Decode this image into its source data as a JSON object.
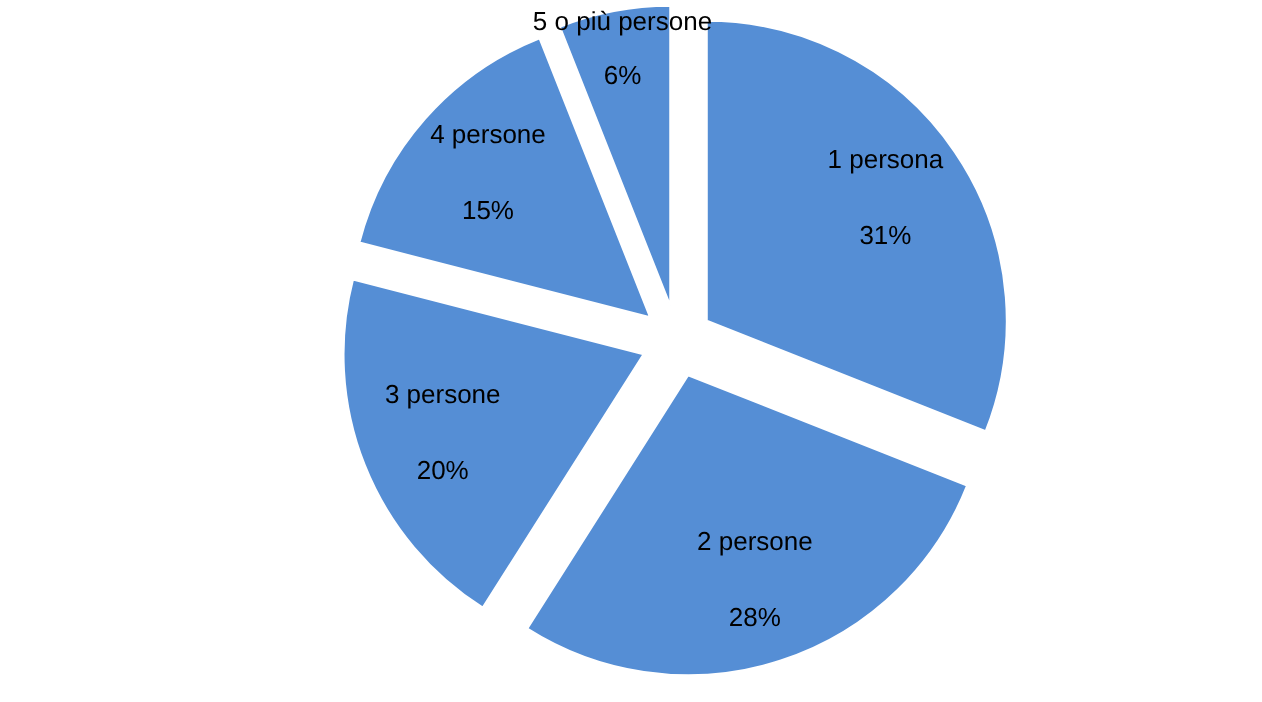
{
  "chart_data": {
    "type": "pie",
    "categories": [
      "1 persona",
      "2 persone",
      "3 persone",
      "4 persone",
      "5 o più persone"
    ],
    "values": [
      31,
      28,
      20,
      15,
      6
    ],
    "value_labels": [
      "31%",
      "28%",
      "20%",
      "15%",
      "6%"
    ],
    "colors": [
      "#558ed5",
      "#558ed5",
      "#558ed5",
      "#558ed5",
      "#558ed5"
    ],
    "legend": false
  }
}
